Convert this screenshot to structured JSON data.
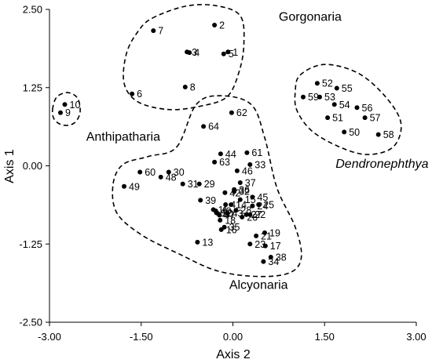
{
  "chart_data": {
    "type": "scatter",
    "title": "",
    "xlabel": "Axis 2",
    "ylabel": "Axis 1",
    "xlim": [
      -3.0,
      3.0
    ],
    "ylim": [
      -2.5,
      2.5
    ],
    "xticks": [
      "-3.00",
      "-1.50",
      "0.00",
      "1.50",
      "3.00"
    ],
    "yticks": [
      "2.50",
      "1.25",
      "0.00",
      "-1.25",
      "-2.50"
    ],
    "grid": false,
    "points": [
      {
        "label": "1",
        "x": -0.08,
        "y": 1.82
      },
      {
        "label": "2",
        "x": -0.3,
        "y": 2.25
      },
      {
        "label": "3",
        "x": -0.75,
        "y": 1.82
      },
      {
        "label": "4",
        "x": -0.71,
        "y": 1.81
      },
      {
        "label": "5",
        "x": -0.15,
        "y": 1.79
      },
      {
        "label": "6",
        "x": -1.65,
        "y": 1.15
      },
      {
        "label": "7",
        "x": -1.3,
        "y": 2.16
      },
      {
        "label": "8",
        "x": -0.78,
        "y": 1.26
      },
      {
        "label": "9",
        "x": -2.82,
        "y": 0.85
      },
      {
        "label": "10",
        "x": -2.75,
        "y": 0.98
      },
      {
        "label": "11",
        "x": -0.32,
        "y": -0.7
      },
      {
        "label": "12",
        "x": -0.27,
        "y": -0.75
      },
      {
        "label": "13",
        "x": -0.58,
        "y": -1.22
      },
      {
        "label": "14",
        "x": -0.03,
        "y": -0.62
      },
      {
        "label": "15",
        "x": 0.12,
        "y": -0.54
      },
      {
        "label": "16",
        "x": -0.19,
        "y": -1.02
      },
      {
        "label": "17",
        "x": 0.53,
        "y": -1.28
      },
      {
        "label": "18",
        "x": -0.21,
        "y": -0.87
      },
      {
        "label": "19",
        "x": 0.52,
        "y": -1.07
      },
      {
        "label": "20",
        "x": -0.25,
        "y": -0.76
      },
      {
        "label": "21",
        "x": 0.38,
        "y": -1.12
      },
      {
        "label": "22",
        "x": 0.28,
        "y": -0.78
      },
      {
        "label": "23",
        "x": 0.28,
        "y": -1.25
      },
      {
        "label": "24",
        "x": 0.32,
        "y": -0.64
      },
      {
        "label": "25",
        "x": 0.42,
        "y": -0.62
      },
      {
        "label": "26",
        "x": 0.15,
        "y": -0.82
      },
      {
        "label": "27",
        "x": 0.22,
        "y": -0.78
      },
      {
        "label": "28",
        "x": 0.05,
        "y": -0.71
      },
      {
        "label": "29",
        "x": -0.55,
        "y": -0.29
      },
      {
        "label": "30",
        "x": -1.05,
        "y": -0.1
      },
      {
        "label": "31",
        "x": -0.82,
        "y": -0.29
      },
      {
        "label": "32",
        "x": 0.02,
        "y": -0.41
      },
      {
        "label": "33",
        "x": 0.28,
        "y": 0.02
      },
      {
        "label": "34",
        "x": 0.5,
        "y": -1.53
      },
      {
        "label": "35",
        "x": -0.14,
        "y": -0.98
      },
      {
        "label": "36",
        "x": 0.02,
        "y": -0.38
      },
      {
        "label": "37",
        "x": 0.12,
        "y": -0.27
      },
      {
        "label": "38",
        "x": 0.62,
        "y": -1.46
      },
      {
        "label": "39",
        "x": -0.53,
        "y": -0.55
      },
      {
        "label": "40",
        "x": -0.28,
        "y": -0.72
      },
      {
        "label": "41",
        "x": -0.12,
        "y": -0.62
      },
      {
        "label": "42",
        "x": -0.13,
        "y": -0.43
      },
      {
        "label": "43",
        "x": -0.09,
        "y": -0.76
      },
      {
        "label": "44",
        "x": -0.2,
        "y": 0.19
      },
      {
        "label": "45",
        "x": 0.32,
        "y": -0.5
      },
      {
        "label": "46",
        "x": 0.07,
        "y": -0.08
      },
      {
        "label": "47",
        "x": -0.22,
        "y": -0.79
      },
      {
        "label": "48",
        "x": -1.18,
        "y": -0.18
      },
      {
        "label": "49",
        "x": -1.78,
        "y": -0.33
      },
      {
        "label": "50",
        "x": 1.82,
        "y": 0.54
      },
      {
        "label": "51",
        "x": 1.55,
        "y": 0.77
      },
      {
        "label": "52",
        "x": 1.38,
        "y": 1.32
      },
      {
        "label": "53",
        "x": 1.42,
        "y": 1.1
      },
      {
        "label": "54",
        "x": 1.66,
        "y": 0.98
      },
      {
        "label": "55",
        "x": 1.7,
        "y": 1.24
      },
      {
        "label": "56",
        "x": 2.03,
        "y": 0.93
      },
      {
        "label": "57",
        "x": 2.16,
        "y": 0.77
      },
      {
        "label": "58",
        "x": 2.38,
        "y": 0.5
      },
      {
        "label": "59",
        "x": 1.15,
        "y": 1.1
      },
      {
        "label": "60",
        "x": -1.52,
        "y": -0.1
      },
      {
        "label": "61",
        "x": 0.23,
        "y": 0.21
      },
      {
        "label": "62",
        "x": -0.02,
        "y": 0.85
      },
      {
        "label": "63",
        "x": -0.3,
        "y": 0.06
      },
      {
        "label": "64",
        "x": -0.48,
        "y": 0.63
      }
    ],
    "groups": [
      {
        "name": "Gorgonaria",
        "label_x": 0.75,
        "label_y": 2.32,
        "italic": false,
        "outline": [
          [
            -1.32,
            2.36
          ],
          [
            -0.78,
            2.55
          ],
          [
            -0.28,
            2.56
          ],
          [
            0.12,
            2.4
          ],
          [
            0.18,
            1.95
          ],
          [
            0.1,
            1.5
          ],
          [
            -0.1,
            1.1
          ],
          [
            -0.55,
            0.95
          ],
          [
            -1.05,
            0.9
          ],
          [
            -1.55,
            1.02
          ],
          [
            -1.78,
            1.32
          ],
          [
            -1.74,
            1.8
          ],
          [
            -1.55,
            2.15
          ]
        ]
      },
      {
        "name": "Anthipatharia",
        "label_x": -2.4,
        "label_y": 0.4,
        "italic": false,
        "outline": [
          [
            -2.95,
            0.9
          ],
          [
            -2.88,
            1.1
          ],
          [
            -2.7,
            1.17
          ],
          [
            -2.54,
            1.08
          ],
          [
            -2.5,
            0.85
          ],
          [
            -2.6,
            0.68
          ],
          [
            -2.78,
            0.65
          ],
          [
            -2.92,
            0.74
          ]
        ]
      },
      {
        "name": "Dendronephthya",
        "label_x": 1.68,
        "label_y": -0.03,
        "italic": true,
        "outline": [
          [
            1.1,
            1.45
          ],
          [
            1.5,
            1.62
          ],
          [
            2.05,
            1.48
          ],
          [
            2.5,
            1.1
          ],
          [
            2.75,
            0.68
          ],
          [
            2.62,
            0.3
          ],
          [
            2.2,
            0.18
          ],
          [
            1.75,
            0.3
          ],
          [
            1.3,
            0.55
          ],
          [
            1.05,
            0.88
          ],
          [
            1.02,
            1.18
          ]
        ]
      },
      {
        "name": "Alcyonaria",
        "label_x": -0.06,
        "label_y": -1.97,
        "italic": false,
        "outline": [
          [
            -0.92,
            0.3
          ],
          [
            -0.6,
            0.98
          ],
          [
            -0.2,
            1.12
          ],
          [
            0.3,
            0.98
          ],
          [
            0.52,
            0.45
          ],
          [
            0.72,
            -0.35
          ],
          [
            1.02,
            -0.98
          ],
          [
            1.12,
            -1.45
          ],
          [
            0.95,
            -1.7
          ],
          [
            0.45,
            -1.77
          ],
          [
            -0.25,
            -1.68
          ],
          [
            -0.9,
            -1.4
          ],
          [
            -1.5,
            -1.1
          ],
          [
            -1.9,
            -0.75
          ],
          [
            -1.96,
            -0.3
          ],
          [
            -1.8,
            0.02
          ],
          [
            -1.38,
            0.15
          ]
        ]
      }
    ]
  }
}
